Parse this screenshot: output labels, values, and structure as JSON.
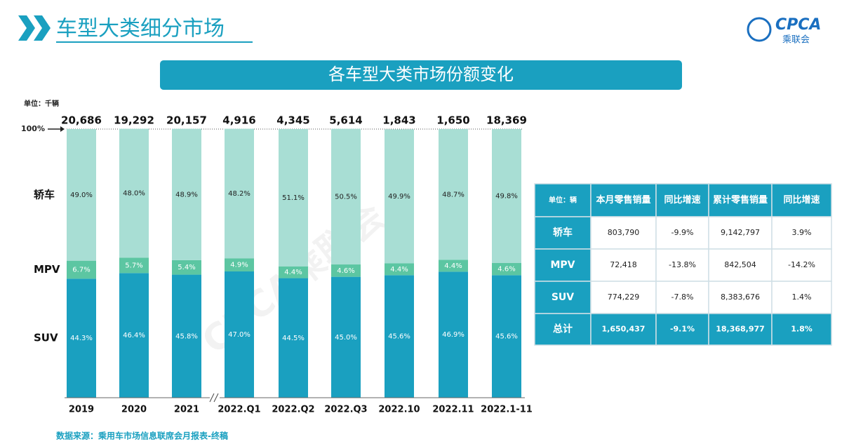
{
  "header": {
    "title": "车型大类细分市场",
    "logo_text": "CPCA",
    "logo_subtext": "乘联会"
  },
  "chart_data": {
    "type": "bar",
    "stacked": true,
    "title": "各车型大类市场份额变化",
    "unit_label": "单位：千辆",
    "categories": [
      "2019",
      "2020",
      "2021",
      "2022.Q1",
      "2022.Q2",
      "2022.Q3",
      "2022.10",
      "2022.11",
      "2022.1-11"
    ],
    "totals": {
      "values": [
        20686,
        19292,
        20157,
        4916,
        4345,
        5614,
        1843,
        1650,
        18369
      ],
      "value_labels": [
        "20,686",
        "19,292",
        "20,157",
        "4,916",
        "4,345",
        "5,614",
        "1,843",
        "1,650",
        "18,369"
      ]
    },
    "series": [
      {
        "name": "SUV",
        "color": "#1aa0c0",
        "values": [
          44.3,
          46.4,
          45.8,
          47.0,
          44.5,
          45.0,
          45.6,
          46.9,
          45.6
        ],
        "value_labels": [
          "44.3%",
          "46.4%",
          "45.8%",
          "47.0%",
          "44.5%",
          "45.0%",
          "45.6%",
          "46.9%",
          "45.6%"
        ]
      },
      {
        "name": "MPV",
        "color": "#5cc6a2",
        "values": [
          6.7,
          5.7,
          5.4,
          4.9,
          4.4,
          4.6,
          4.4,
          4.4,
          4.6
        ],
        "value_labels": [
          "6.7%",
          "5.7%",
          "5.4%",
          "4.9%",
          "4.4%",
          "4.6%",
          "4.4%",
          "4.4%",
          "4.6%"
        ]
      },
      {
        "name": "轿车",
        "color": "#a8ded4",
        "values": [
          49.0,
          48.0,
          48.9,
          48.2,
          51.1,
          50.5,
          49.9,
          48.7,
          49.8
        ],
        "value_labels": [
          "49.0%",
          "48.0%",
          "48.9%",
          "48.2%",
          "51.1%",
          "50.5%",
          "49.9%",
          "48.7%",
          "49.8%"
        ]
      }
    ],
    "ylim": [
      0,
      100
    ],
    "yticks": [
      {
        "value": 100,
        "label": "100%"
      }
    ]
  },
  "table": {
    "header": [
      "单位：辆",
      "本月零售销量",
      "同比增速",
      "累计零售销量",
      "同比增速"
    ],
    "rows": [
      [
        "轿车",
        "803,790",
        "-9.9%",
        "9,142,797",
        "3.9%"
      ],
      [
        "MPV",
        "72,418",
        "-13.8%",
        "842,504",
        "-14.2%"
      ],
      [
        "SUV",
        "774,229",
        "-7.8%",
        "8,383,676",
        "1.4%"
      ],
      [
        "总计",
        "1,650,437",
        "-9.1%",
        "18,368,977",
        "1.8%"
      ]
    ]
  },
  "source": "数据来源：乘用车市场信息联席会月报表-终稿",
  "watermark": "CPCA乘联会"
}
